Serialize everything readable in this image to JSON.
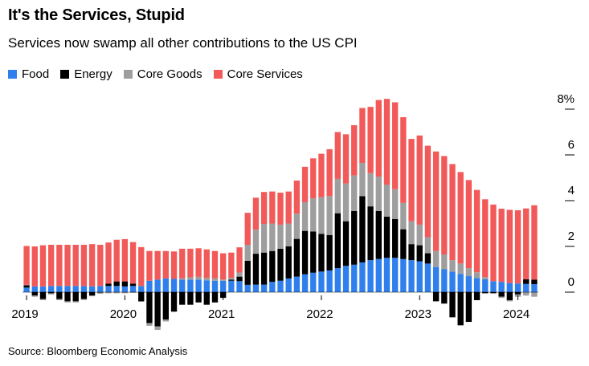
{
  "title": "It's the Services, Stupid",
  "subtitle": "Services now swamp all other contributions to the US CPI",
  "source": "Source: Bloomberg Economic Analysis",
  "colors": {
    "Food": "#2f80ed",
    "Energy": "#000000",
    "Core Goods": "#9e9e9e",
    "Core Services": "#f25a5a"
  },
  "chart_data": {
    "type": "bar",
    "stacked": true,
    "title": "It's the Services, Stupid",
    "subtitle": "Services now swamp all other contributions to the US CPI",
    "ylim": [
      -1.5,
      8.5
    ],
    "y_ticks": [
      0,
      2,
      4,
      6,
      8
    ],
    "y_tick_labels": [
      "0",
      "2",
      "4",
      "6",
      "8%"
    ],
    "y_axis_side": "right",
    "x_tick_labels": [
      "2019",
      "2020",
      "2021",
      "2022",
      "2023",
      "2024"
    ],
    "x_tick_indices": [
      0,
      12,
      24,
      36,
      48,
      60
    ],
    "legend_placement": "top-left",
    "grid": false,
    "categories": [
      "2019-01",
      "2019-02",
      "2019-03",
      "2019-04",
      "2019-05",
      "2019-06",
      "2019-07",
      "2019-08",
      "2019-09",
      "2019-10",
      "2019-11",
      "2019-12",
      "2020-01",
      "2020-02",
      "2020-03",
      "2020-04",
      "2020-05",
      "2020-06",
      "2020-07",
      "2020-08",
      "2020-09",
      "2020-10",
      "2020-11",
      "2020-12",
      "2021-01",
      "2021-02",
      "2021-03",
      "2021-04",
      "2021-05",
      "2021-06",
      "2021-07",
      "2021-08",
      "2021-09",
      "2021-10",
      "2021-11",
      "2021-12",
      "2022-01",
      "2022-02",
      "2022-03",
      "2022-04",
      "2022-05",
      "2022-06",
      "2022-07",
      "2022-08",
      "2022-09",
      "2022-10",
      "2022-11",
      "2022-12",
      "2023-01",
      "2023-02",
      "2023-03",
      "2023-04",
      "2023-05",
      "2023-06",
      "2023-07",
      "2023-08",
      "2023-09",
      "2023-10",
      "2023-11",
      "2023-12",
      "2024-01",
      "2024-02",
      "2024-03"
    ],
    "series": [
      {
        "name": "Food",
        "values": [
          0.2,
          0.25,
          0.25,
          0.27,
          0.27,
          0.27,
          0.27,
          0.27,
          0.25,
          0.27,
          0.27,
          0.27,
          0.25,
          0.27,
          0.27,
          0.5,
          0.55,
          0.6,
          0.58,
          0.55,
          0.55,
          0.55,
          0.52,
          0.5,
          0.5,
          0.5,
          0.48,
          0.32,
          0.33,
          0.33,
          0.45,
          0.5,
          0.6,
          0.68,
          0.78,
          0.85,
          0.9,
          0.95,
          1.05,
          1.15,
          1.2,
          1.3,
          1.4,
          1.45,
          1.5,
          1.5,
          1.45,
          1.4,
          1.35,
          1.25,
          1.1,
          1.0,
          0.9,
          0.8,
          0.7,
          0.62,
          0.56,
          0.48,
          0.45,
          0.4,
          0.38,
          0.36,
          0.35
        ]
      },
      {
        "name": "Energy",
        "values": [
          0.1,
          -0.15,
          -0.3,
          -0.05,
          -0.3,
          -0.4,
          -0.4,
          -0.3,
          -0.15,
          -0.02,
          0.1,
          0.2,
          0.22,
          0.1,
          -0.4,
          -1.35,
          -1.5,
          -1.2,
          -0.85,
          -0.55,
          -0.55,
          -0.45,
          -0.55,
          -0.45,
          -0.25,
          0.05,
          0.2,
          1.05,
          1.35,
          1.4,
          1.35,
          1.4,
          1.4,
          1.65,
          1.9,
          1.8,
          1.65,
          1.55,
          2.4,
          1.95,
          2.35,
          2.9,
          2.35,
          2.1,
          1.8,
          1.7,
          1.3,
          0.7,
          0.7,
          0.45,
          -0.4,
          -0.5,
          -1.1,
          -1.45,
          -1.3,
          -0.35,
          -0.05,
          -0.05,
          -0.2,
          -0.35,
          -0.1,
          0.2,
          0.2
        ]
      },
      {
        "name": "Core Goods",
        "values": [
          0.02,
          -0.05,
          -0.05,
          -0.05,
          -0.05,
          -0.05,
          -0.05,
          -0.04,
          -0.03,
          -0.05,
          -0.05,
          -0.05,
          -0.05,
          -0.03,
          -0.02,
          -0.12,
          -0.15,
          -0.08,
          -0.02,
          0.05,
          0.1,
          0.12,
          0.1,
          0.1,
          0.05,
          0.08,
          0.18,
          0.7,
          1.05,
          1.25,
          1.2,
          1.05,
          1.0,
          1.1,
          1.25,
          1.45,
          1.6,
          1.7,
          1.5,
          1.65,
          1.55,
          1.45,
          1.45,
          1.5,
          1.4,
          1.3,
          1.15,
          1.0,
          0.9,
          0.7,
          0.7,
          0.65,
          0.5,
          0.45,
          0.35,
          0.25,
          0.1,
          0.0,
          -0.05,
          -0.05,
          -0.1,
          -0.15,
          -0.2
        ]
      },
      {
        "name": "Core Services",
        "values": [
          1.7,
          1.75,
          1.8,
          1.8,
          1.8,
          1.8,
          1.8,
          1.8,
          1.85,
          1.8,
          1.8,
          1.82,
          1.85,
          1.82,
          1.7,
          1.3,
          1.25,
          1.2,
          1.2,
          1.3,
          1.25,
          1.25,
          1.25,
          1.2,
          1.15,
          1.1,
          1.1,
          1.4,
          1.4,
          1.4,
          1.4,
          1.4,
          1.4,
          1.45,
          1.55,
          1.75,
          1.9,
          2.05,
          2.05,
          2.15,
          2.2,
          2.4,
          2.9,
          3.35,
          3.75,
          3.8,
          3.75,
          3.6,
          3.9,
          4.0,
          4.35,
          4.3,
          4.2,
          4.0,
          3.85,
          3.6,
          3.4,
          3.35,
          3.2,
          3.2,
          3.2,
          3.1,
          3.25
        ]
      }
    ]
  }
}
